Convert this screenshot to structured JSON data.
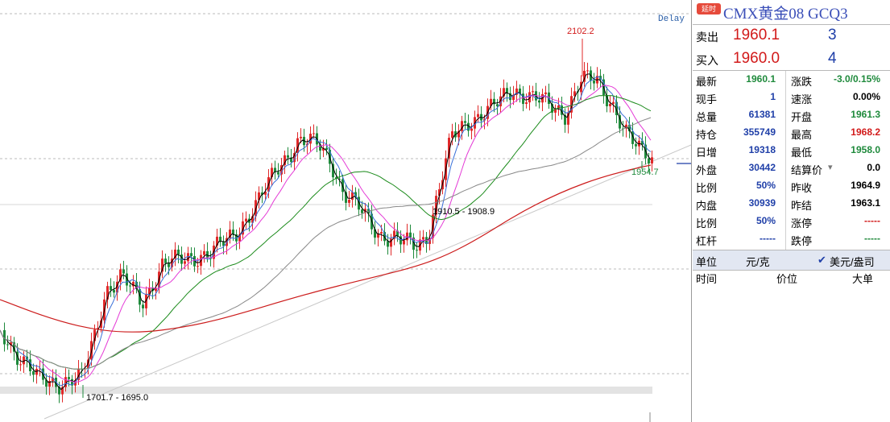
{
  "chart": {
    "delay_label": "Delay",
    "annotations": {
      "high": "2102.2",
      "low": "1701.7 - 1695.0",
      "gap": "1910.5 - 1908.9",
      "last": "1954.7"
    },
    "colors": {
      "up": "#e0292a",
      "down": "#1f8a3c",
      "ma5": "#000000",
      "ma10": "#3a6fd8",
      "ma20": "#e43ad6",
      "ma60": "#1a8a1a",
      "ma120": "#888888",
      "ma250": "#cc1b1b"
    }
  },
  "panel": {
    "badge": "延时",
    "title": "CMX黄金08  GCQ3",
    "ask": {
      "label": "卖出",
      "price": "1960.1",
      "volume": "3"
    },
    "bid": {
      "label": "买入",
      "price": "1960.0",
      "volume": "4"
    },
    "rows": [
      {
        "l1": "最新",
        "v1": "1960.1",
        "c1": "#1f8a3c",
        "l2": "涨跌",
        "v2": "-3.0/0.15%",
        "c2": "#1f8a3c"
      },
      {
        "l1": "现手",
        "v1": "1",
        "c1": "#1f3fa8",
        "l2": "速涨",
        "v2": "0.00%",
        "c2": "#000000"
      },
      {
        "l1": "总量",
        "v1": "61381",
        "c1": "#1f3fa8",
        "l2": "开盘",
        "v2": "1961.3",
        "c2": "#1f8a3c"
      },
      {
        "l1": "持仓",
        "v1": "355749",
        "c1": "#1f3fa8",
        "l2": "最高",
        "v2": "1968.2",
        "c2": "#d21a1a"
      },
      {
        "l1": "日增",
        "v1": "19318",
        "c1": "#1f3fa8",
        "l2": "最低",
        "v2": "1958.0",
        "c2": "#1f8a3c"
      },
      {
        "l1": "外盘",
        "v1": "30442",
        "c1": "#1f3fa8",
        "l2": "结算价",
        "v2": "0.0",
        "c2": "#000000"
      },
      {
        "l1": "比例",
        "v1": "50%",
        "c1": "#1f3fa8",
        "l2": "昨收",
        "v2": "1964.9",
        "c2": "#000000"
      },
      {
        "l1": "内盘",
        "v1": "30939",
        "c1": "#1f3fa8",
        "l2": "昨结",
        "v2": "1963.1",
        "c2": "#000000"
      },
      {
        "l1": "比例",
        "v1": "50%",
        "c1": "#1f3fa8",
        "l2": "涨停",
        "v2": "-----",
        "c2": "#d21a1a"
      },
      {
        "l1": "杠杆",
        "v1": "-----",
        "c1": "#1f3fa8",
        "l2": "跌停",
        "v2": "-----",
        "c2": "#1f8a3c"
      }
    ],
    "unit": {
      "label": "单位",
      "yuan": "元/克",
      "usd": "美元/盎司"
    },
    "ticks": {
      "time": "时间",
      "price": "价位",
      "big": "大单"
    }
  }
}
